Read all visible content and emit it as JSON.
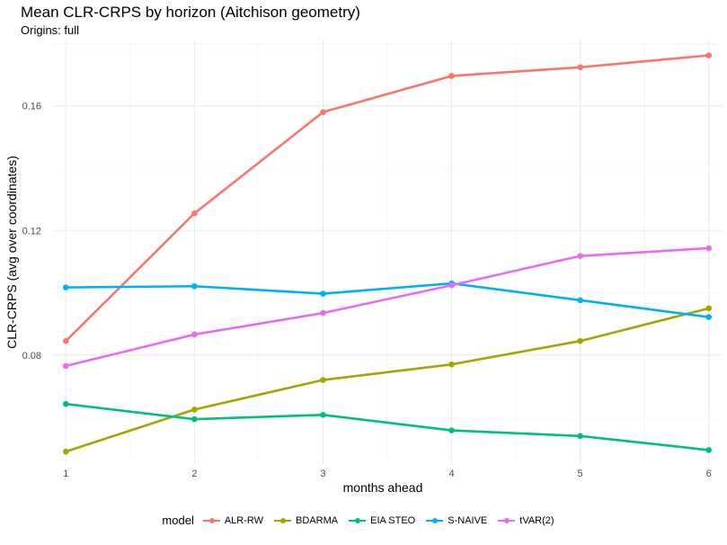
{
  "chart_data": {
    "type": "line",
    "title": "Mean CLR-CRPS by horizon (Aitchison geometry)",
    "subtitle": "Origins: full",
    "xlabel": "months ahead",
    "ylabel": "CLR-CRPS (avg over coordinates)",
    "x": [
      1,
      2,
      3,
      4,
      5,
      6
    ],
    "xlim": [
      0.9,
      6.1
    ],
    "ylim": [
      0.045,
      0.181
    ],
    "yticks": [
      0.08,
      0.12,
      0.16
    ],
    "ytick_labels": [
      "0.08",
      "0.12",
      "0.16"
    ],
    "xtick_labels": [
      "1",
      "2",
      "3",
      "4",
      "5",
      "6"
    ],
    "grid": true,
    "legend_position": "bottom",
    "legend_title": "model",
    "series": [
      {
        "name": "ALR-RW",
        "color": "#F8766D",
        "values": [
          0.0845,
          0.1255,
          0.158,
          0.1696,
          0.1724,
          0.1762
        ]
      },
      {
        "name": "BDARMA",
        "color": "#A3A500",
        "values": [
          0.049,
          0.0625,
          0.072,
          0.077,
          0.0845,
          0.095
        ]
      },
      {
        "name": "EIA STEO",
        "color": "#00BF7D",
        "values": [
          0.0643,
          0.0594,
          0.0608,
          0.0558,
          0.054,
          0.0495
        ]
      },
      {
        "name": "S-NAIVE",
        "color": "#00B0F6",
        "values": [
          0.1017,
          0.1021,
          0.0997,
          0.103,
          0.0976,
          0.0922
        ]
      },
      {
        "name": "tVAR(2)",
        "color": "#E76BF3",
        "values": [
          0.0765,
          0.0866,
          0.0935,
          0.1024,
          0.1118,
          0.1143
        ]
      }
    ]
  }
}
